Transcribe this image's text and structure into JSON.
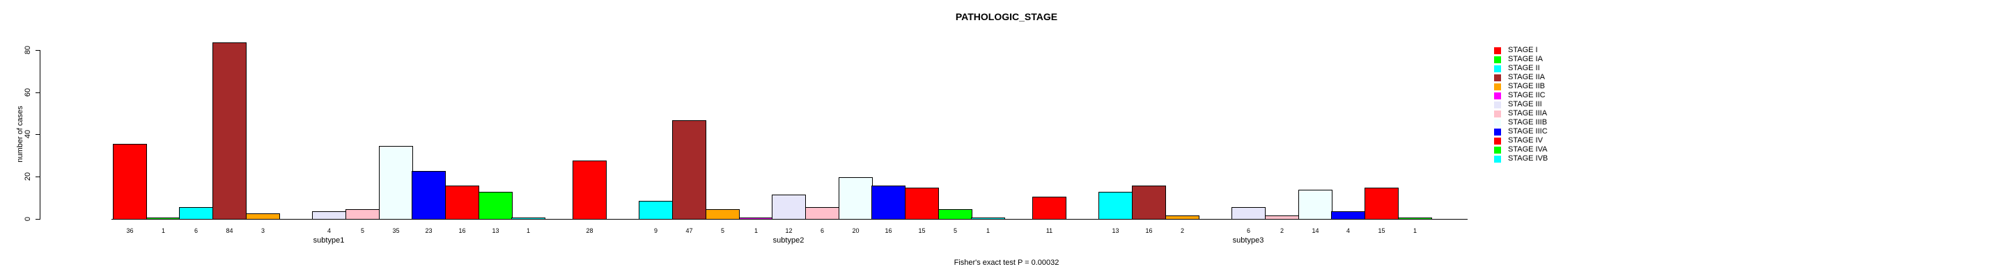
{
  "chart_data": {
    "type": "bar",
    "title": "PATHOLOGIC_STAGE",
    "ylabel": "number of cases",
    "xlabel": "",
    "ylim": [
      0,
      80
    ],
    "yticks": [
      0,
      20,
      40,
      60,
      80
    ],
    "grid": false,
    "legend_position": "right",
    "bar_value_labels": true,
    "categories": [
      "subtype1",
      "subtype2",
      "subtype3"
    ],
    "series": [
      {
        "name": "STAGE I",
        "color": "#FF0000",
        "values": [
          36,
          28,
          11
        ]
      },
      {
        "name": "STAGE IA",
        "color": "#00FF00",
        "values": [
          1,
          0,
          0
        ]
      },
      {
        "name": "STAGE II",
        "color": "#00FFFF",
        "values": [
          6,
          9,
          13
        ]
      },
      {
        "name": "STAGE IIA",
        "color": "#A52A2A",
        "values": [
          84,
          47,
          16
        ]
      },
      {
        "name": "STAGE IIB",
        "color": "#FFA500",
        "values": [
          3,
          5,
          2
        ]
      },
      {
        "name": "STAGE IIC",
        "color": "#FF00FF",
        "values": [
          0,
          1,
          0
        ]
      },
      {
        "name": "STAGE III",
        "color": "#E6E6FA",
        "values": [
          4,
          12,
          6
        ]
      },
      {
        "name": "STAGE IIIA",
        "color": "#FFC0CB",
        "values": [
          5,
          6,
          2
        ]
      },
      {
        "name": "STAGE IIIB",
        "color": "#F0FFFF",
        "values": [
          35,
          20,
          14
        ]
      },
      {
        "name": "STAGE IIIC",
        "color": "#0000FF",
        "values": [
          23,
          16,
          4
        ]
      },
      {
        "name": "STAGE IV",
        "color": "#FF0000",
        "values": [
          16,
          15,
          15
        ]
      },
      {
        "name": "STAGE IVA",
        "color": "#00FF00",
        "values": [
          13,
          5,
          1
        ]
      },
      {
        "name": "STAGE IVB",
        "color": "#00FFFF",
        "values": [
          1,
          1,
          0
        ]
      }
    ],
    "annotation": "Fisher's exact test P = 0.00032",
    "axis_color": "#000000",
    "bar_border_color": "#000000"
  }
}
